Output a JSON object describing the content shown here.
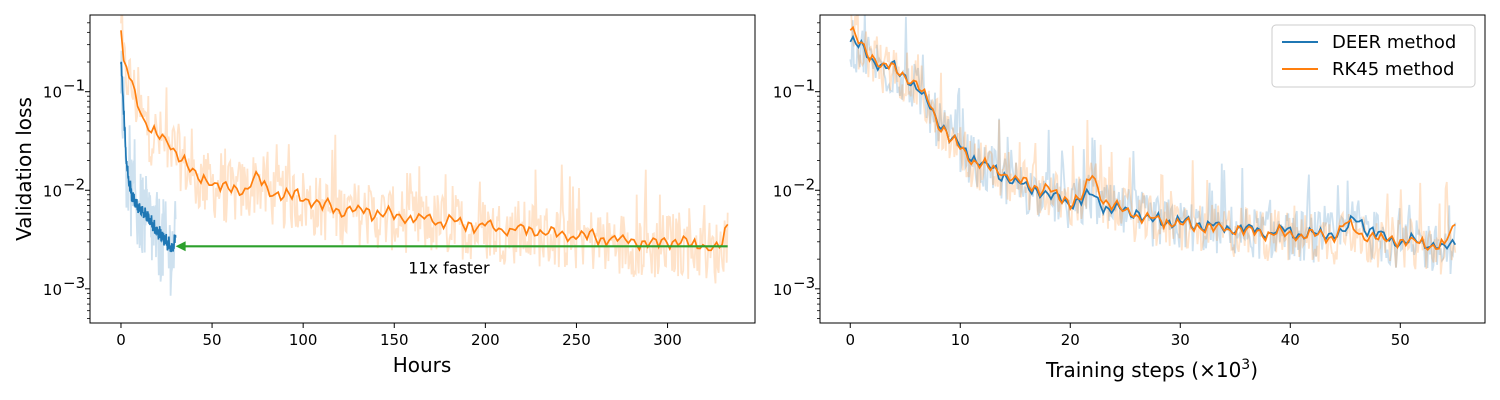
{
  "chart_data": [
    {
      "type": "line",
      "xlabel": "Hours",
      "ylabel": "Validation loss",
      "yscale": "log",
      "xlim": [
        -17,
        348
      ],
      "ylim": [
        0.00045,
        0.6
      ],
      "xticks": [
        0,
        50,
        100,
        150,
        200,
        250,
        300
      ],
      "xtick_labels": [
        "0",
        "50",
        "100",
        "150",
        "200",
        "250",
        "300"
      ],
      "yticks": [
        0.001,
        0.01,
        0.1
      ],
      "ytick_labels": [
        "10",
        "10",
        "10"
      ],
      "ytick_exponents": [
        "−3",
        "−2",
        "−1"
      ],
      "grid": false,
      "series": [
        {
          "color": "#ff7f0e",
          "x_end": 333,
          "smoothed": [
            [
              0,
              0.42
            ],
            [
              1,
              0.2
            ],
            [
              3,
              0.17
            ],
            [
              6,
              0.12
            ],
            [
              9,
              0.08
            ],
            [
              12,
              0.055
            ],
            [
              16,
              0.042
            ],
            [
              20,
              0.036
            ],
            [
              25,
              0.03
            ],
            [
              30,
              0.026
            ],
            [
              35,
              0.02
            ],
            [
              40,
              0.014
            ],
            [
              45,
              0.013
            ],
            [
              50,
              0.012
            ],
            [
              60,
              0.01
            ],
            [
              70,
              0.011
            ],
            [
              75,
              0.014
            ],
            [
              80,
              0.01
            ],
            [
              90,
              0.009
            ],
            [
              100,
              0.0085
            ],
            [
              110,
              0.007
            ],
            [
              120,
              0.0065
            ],
            [
              130,
              0.0062
            ],
            [
              140,
              0.0058
            ],
            [
              150,
              0.0055
            ],
            [
              160,
              0.0052
            ],
            [
              170,
              0.005
            ],
            [
              180,
              0.0048
            ],
            [
              190,
              0.0045
            ],
            [
              200,
              0.0043
            ],
            [
              210,
              0.0041
            ],
            [
              220,
              0.004
            ],
            [
              230,
              0.0038
            ],
            [
              240,
              0.0036
            ],
            [
              250,
              0.0035
            ],
            [
              260,
              0.0034
            ],
            [
              270,
              0.0032
            ],
            [
              280,
              0.0031
            ],
            [
              290,
              0.0027
            ],
            [
              300,
              0.0031
            ],
            [
              310,
              0.0029
            ],
            [
              320,
              0.0028
            ],
            [
              325,
              0.0024
            ],
            [
              330,
              0.0028
            ],
            [
              333,
              0.0045
            ]
          ],
          "raw_spread": 1.8
        },
        {
          "color": "#1f77b4",
          "x_end": 30,
          "smoothed": [
            [
              0,
              0.19
            ],
            [
              1,
              0.1
            ],
            [
              2,
              0.04
            ],
            [
              3,
              0.02
            ],
            [
              4,
              0.013
            ],
            [
              6,
              0.009
            ],
            [
              8,
              0.0075
            ],
            [
              10,
              0.0065
            ],
            [
              12,
              0.006
            ],
            [
              14,
              0.0055
            ],
            [
              16,
              0.005
            ],
            [
              18,
              0.0042
            ],
            [
              20,
              0.0038
            ],
            [
              22,
              0.0035
            ],
            [
              24,
              0.0032
            ],
            [
              26,
              0.0028
            ],
            [
              28,
              0.0025
            ],
            [
              30,
              0.0033
            ]
          ],
          "raw_spread": 2.2
        }
      ],
      "annotation": {
        "text": "11x faster",
        "arrow_from_x": 333,
        "arrow_to_x": 30,
        "arrow_y": 0.0027,
        "text_x": 180,
        "text_y": 0.0016,
        "color": "#2ca02c"
      }
    },
    {
      "type": "line",
      "xlabel": "Training steps (×10",
      "xlabel_superscript": "3",
      "xlabel_suffix": ")",
      "ylabel": "",
      "yscale": "log",
      "xlim": [
        -2.75,
        57.7
      ],
      "ylim": [
        0.00045,
        0.6
      ],
      "xticks": [
        0,
        10,
        20,
        30,
        40,
        50
      ],
      "xtick_labels": [
        "0",
        "10",
        "20",
        "30",
        "40",
        "50"
      ],
      "yticks": [
        0.001,
        0.01,
        0.1
      ],
      "ytick_labels": [
        "10",
        "10",
        "10"
      ],
      "ytick_exponents": [
        "−3",
        "−2",
        "−1"
      ],
      "grid": false,
      "legend_position": "top-right",
      "series": [
        {
          "name": "DEER method",
          "color": "#1f77b4",
          "x_end": 55,
          "smoothed": [
            [
              0,
              0.32
            ],
            [
              1,
              0.28
            ],
            [
              2,
              0.22
            ],
            [
              3,
              0.18
            ],
            [
              4,
              0.17
            ],
            [
              5,
              0.15
            ],
            [
              6,
              0.11
            ],
            [
              7,
              0.075
            ],
            [
              8,
              0.05
            ],
            [
              9,
              0.035
            ],
            [
              10,
              0.028
            ],
            [
              11,
              0.022
            ],
            [
              12,
              0.018
            ],
            [
              13,
              0.016
            ],
            [
              14,
              0.014
            ],
            [
              15,
              0.012
            ],
            [
              16,
              0.011
            ],
            [
              17,
              0.01
            ],
            [
              18,
              0.009
            ],
            [
              19,
              0.0085
            ],
            [
              20,
              0.0075
            ],
            [
              21,
              0.008
            ],
            [
              22,
              0.009
            ],
            [
              23,
              0.007
            ],
            [
              24,
              0.0065
            ],
            [
              25,
              0.0062
            ],
            [
              26,
              0.006
            ],
            [
              27,
              0.0052
            ],
            [
              28,
              0.005
            ],
            [
              29,
              0.0048
            ],
            [
              30,
              0.0046
            ],
            [
              32,
              0.0045
            ],
            [
              34,
              0.0042
            ],
            [
              36,
              0.004
            ],
            [
              38,
              0.0038
            ],
            [
              40,
              0.0037
            ],
            [
              42,
              0.0036
            ],
            [
              44,
              0.0035
            ],
            [
              45,
              0.0038
            ],
            [
              46,
              0.0055
            ],
            [
              47,
              0.004
            ],
            [
              48,
              0.0035
            ],
            [
              50,
              0.003
            ],
            [
              52,
              0.003
            ],
            [
              54,
              0.0026
            ],
            [
              55,
              0.0028
            ]
          ],
          "raw_spread": 1.6
        },
        {
          "name": "RK45 method",
          "color": "#ff7f0e",
          "x_end": 55,
          "smoothed": [
            [
              0,
              0.42
            ],
            [
              1,
              0.3
            ],
            [
              2,
              0.22
            ],
            [
              3,
              0.18
            ],
            [
              4,
              0.17
            ],
            [
              5,
              0.15
            ],
            [
              6,
              0.12
            ],
            [
              7,
              0.08
            ],
            [
              8,
              0.05
            ],
            [
              9,
              0.035
            ],
            [
              10,
              0.027
            ],
            [
              11,
              0.021
            ],
            [
              12,
              0.018
            ],
            [
              13,
              0.016
            ],
            [
              14,
              0.015
            ],
            [
              15,
              0.013
            ],
            [
              16,
              0.012
            ],
            [
              17,
              0.011
            ],
            [
              18,
              0.01
            ],
            [
              19,
              0.0085
            ],
            [
              20,
              0.0078
            ],
            [
              21,
              0.0085
            ],
            [
              22,
              0.014
            ],
            [
              23,
              0.008
            ],
            [
              24,
              0.0068
            ],
            [
              25,
              0.006
            ],
            [
              26,
              0.0058
            ],
            [
              27,
              0.0052
            ],
            [
              28,
              0.005
            ],
            [
              29,
              0.0047
            ],
            [
              30,
              0.0045
            ],
            [
              32,
              0.0043
            ],
            [
              34,
              0.0041
            ],
            [
              36,
              0.0039
            ],
            [
              38,
              0.0037
            ],
            [
              40,
              0.0036
            ],
            [
              42,
              0.0035
            ],
            [
              44,
              0.0034
            ],
            [
              45,
              0.0045
            ],
            [
              46,
              0.004
            ],
            [
              47,
              0.0034
            ],
            [
              48,
              0.0032
            ],
            [
              50,
              0.0031
            ],
            [
              52,
              0.0029
            ],
            [
              54,
              0.0027
            ],
            [
              55,
              0.0045
            ]
          ],
          "raw_spread": 1.6
        }
      ]
    }
  ]
}
